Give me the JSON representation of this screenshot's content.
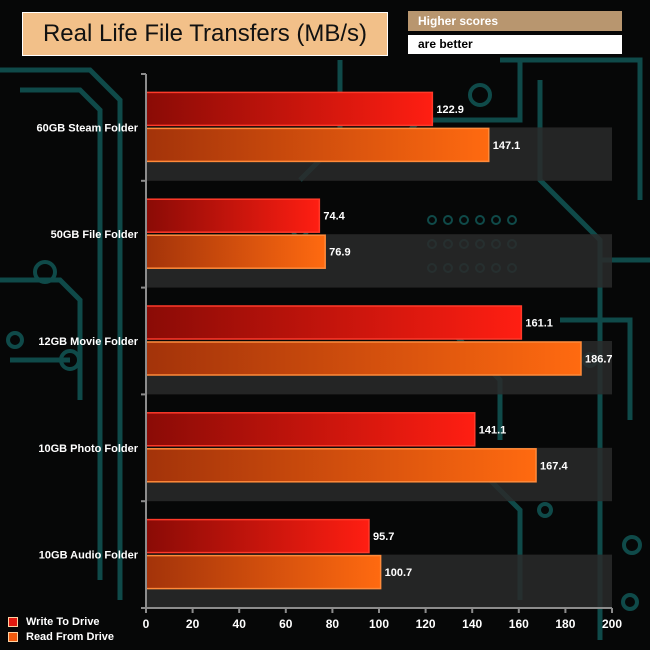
{
  "header": {
    "title": "Real Life File Transfers (MB/s)",
    "note_line1": "Higher scores",
    "note_line2": "are better"
  },
  "chart_data": {
    "type": "bar",
    "orientation": "horizontal",
    "categories": [
      "60GB Steam Folder",
      "50GB File Folder",
      "12GB Movie Folder",
      "10GB Photo Folder",
      "10GB Audio Folder"
    ],
    "series": [
      {
        "name": "Write To  Drive",
        "values": [
          122.9,
          74.4,
          161.1,
          141.1,
          95.7
        ],
        "color": "#e01a10"
      },
      {
        "name": "Read From  Drive",
        "values": [
          147.1,
          76.9,
          186.7,
          167.4,
          100.7
        ],
        "color": "#f05a0e"
      }
    ],
    "xlim": [
      0,
      200
    ],
    "xticks": [
      0,
      20,
      40,
      60,
      80,
      100,
      120,
      140,
      160,
      180,
      200
    ],
    "title": "Real Life File Transfers (MB/s)",
    "legend_position": "bottom-left",
    "grid": false
  },
  "colors": {
    "background": "#060707",
    "circuit": "#0f4a49",
    "band": "#2a2a2a",
    "axis": "#8c8c8c"
  }
}
